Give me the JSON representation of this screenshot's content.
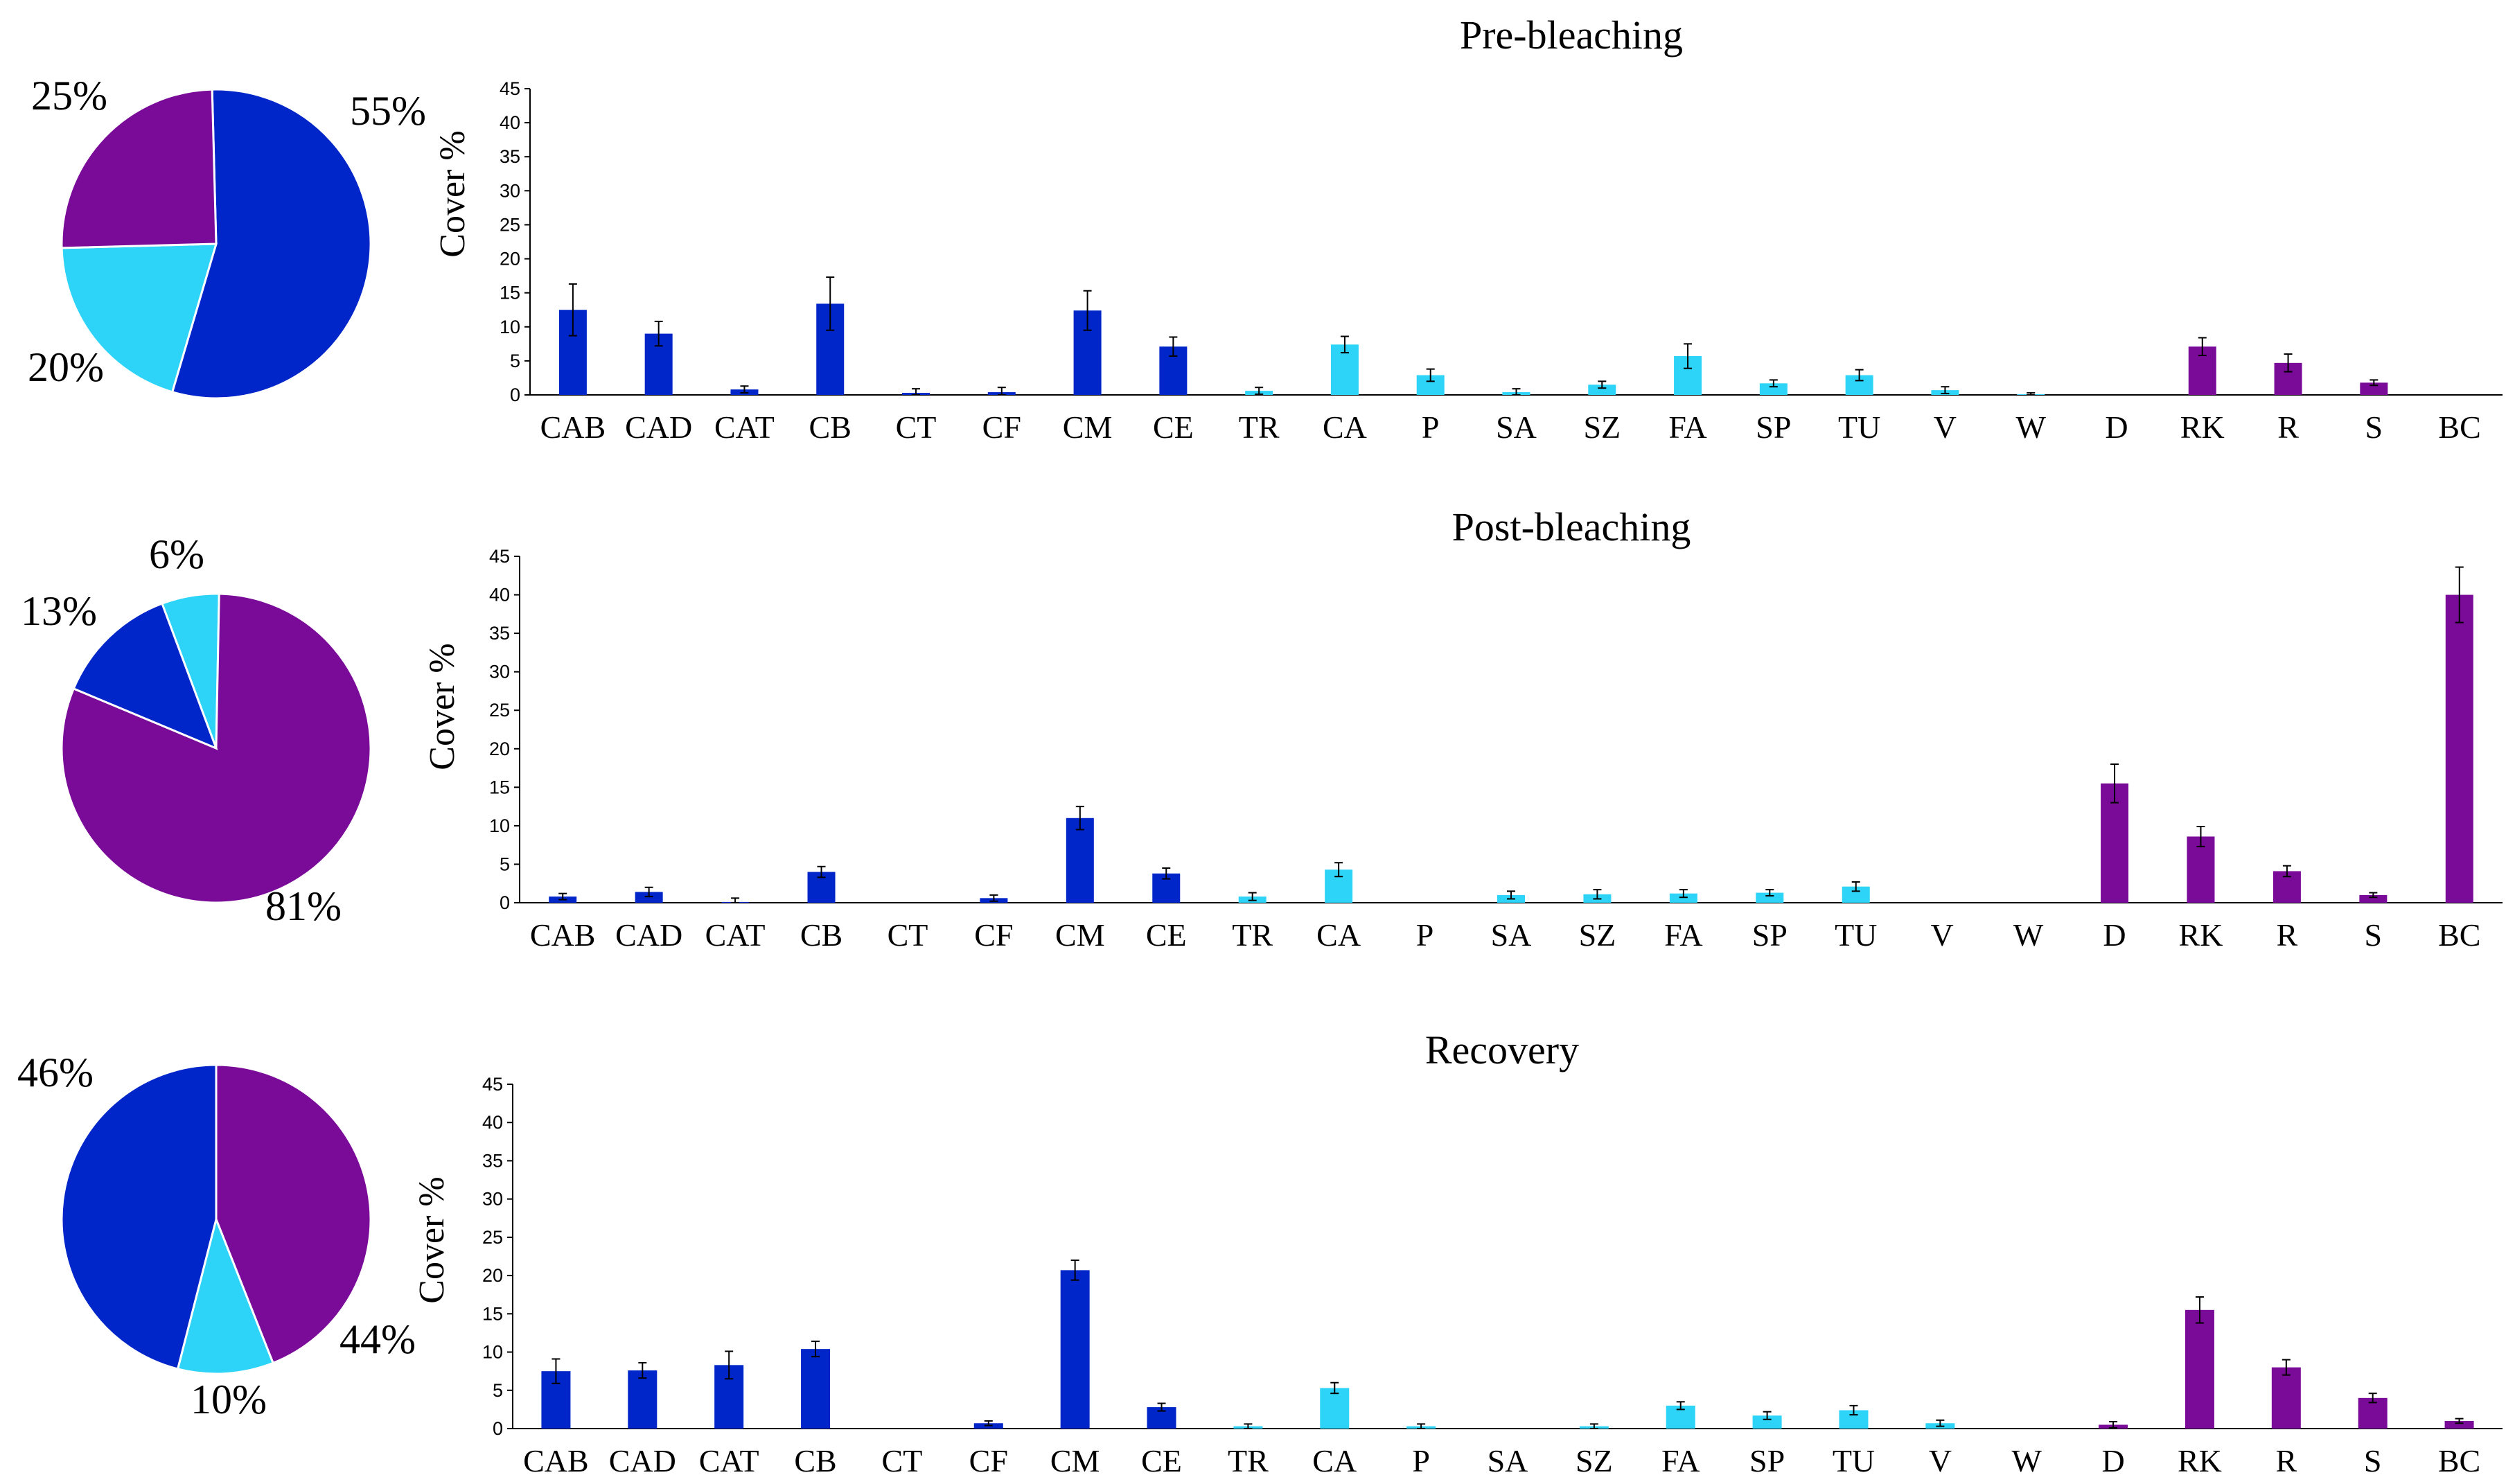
{
  "colors": {
    "coral": "#0026c9",
    "other_biota": "#2ed4f7",
    "substrate": "#7a0b99"
  },
  "chart_data": [
    {
      "type": "pie",
      "name": "pre-pie",
      "slices": [
        {
          "category": "coral",
          "value": 55,
          "label": "55%"
        },
        {
          "category": "other_biota",
          "value": 20,
          "label": "20%"
        },
        {
          "category": "substrate",
          "value": 25,
          "label": "25%"
        }
      ]
    },
    {
      "type": "bar",
      "name": "pre-bar",
      "title": "Pre-bleaching",
      "ylabel": "Cover %",
      "ylim": [
        0,
        45
      ],
      "yticks": [
        0,
        5,
        10,
        15,
        20,
        25,
        30,
        35,
        40,
        45
      ],
      "categories": [
        "CAB",
        "CAD",
        "CAT",
        "CB",
        "CT",
        "CF",
        "CM",
        "CE",
        "TR",
        "CA",
        "P",
        "SA",
        "SZ",
        "FA",
        "SP",
        "TU",
        "V",
        "W",
        "D",
        "RK",
        "R",
        "S",
        "BC"
      ],
      "groups": [
        "coral",
        "coral",
        "coral",
        "coral",
        "coral",
        "coral",
        "coral",
        "coral",
        "other_biota",
        "other_biota",
        "other_biota",
        "other_biota",
        "other_biota",
        "other_biota",
        "other_biota",
        "other_biota",
        "other_biota",
        "other_biota",
        "substrate",
        "substrate",
        "substrate",
        "substrate",
        "substrate"
      ],
      "values": [
        12.5,
        9.0,
        0.8,
        13.4,
        0.3,
        0.4,
        12.4,
        7.1,
        0.6,
        7.4,
        2.9,
        0.4,
        1.5,
        5.7,
        1.7,
        2.9,
        0.7,
        0.1,
        0,
        7.1,
        4.7,
        1.8,
        0
      ],
      "errors": [
        3.8,
        1.8,
        0.5,
        3.9,
        0.6,
        0.7,
        2.9,
        1.4,
        0.5,
        1.2,
        0.9,
        0.5,
        0.5,
        1.8,
        0.5,
        0.8,
        0.5,
        0.2,
        0,
        1.3,
        1.3,
        0.4,
        0
      ]
    },
    {
      "type": "pie",
      "name": "post-pie",
      "slices": [
        {
          "category": "other_biota",
          "value": 6,
          "label": "6%"
        },
        {
          "category": "substrate",
          "value": 81,
          "label": "81%"
        },
        {
          "category": "coral",
          "value": 13,
          "label": "13%"
        }
      ]
    },
    {
      "type": "bar",
      "name": "post-bar",
      "title": "Post-bleaching",
      "ylabel": "Cover %",
      "ylim": [
        0,
        45
      ],
      "yticks": [
        0,
        5,
        10,
        15,
        20,
        25,
        30,
        35,
        40,
        45
      ],
      "categories": [
        "CAB",
        "CAD",
        "CAT",
        "CB",
        "CT",
        "CF",
        "CM",
        "CE",
        "TR",
        "CA",
        "P",
        "SA",
        "SZ",
        "FA",
        "SP",
        "TU",
        "V",
        "W",
        "D",
        "RK",
        "R",
        "S",
        "BC"
      ],
      "groups": [
        "coral",
        "coral",
        "coral",
        "coral",
        "coral",
        "coral",
        "coral",
        "coral",
        "other_biota",
        "other_biota",
        "other_biota",
        "other_biota",
        "other_biota",
        "other_biota",
        "other_biota",
        "other_biota",
        "other_biota",
        "other_biota",
        "substrate",
        "substrate",
        "substrate",
        "substrate",
        "substrate"
      ],
      "values": [
        0.8,
        1.4,
        0.1,
        4.0,
        0,
        0.6,
        11.0,
        3.8,
        0.8,
        4.3,
        0,
        1.0,
        1.1,
        1.2,
        1.3,
        2.1,
        0,
        0,
        15.5,
        8.6,
        4.1,
        1.0,
        40.0
      ],
      "errors": [
        0.4,
        0.6,
        0.5,
        0.7,
        0,
        0.4,
        1.5,
        0.7,
        0.5,
        0.9,
        0,
        0.5,
        0.6,
        0.5,
        0.4,
        0.6,
        0,
        0,
        2.5,
        1.3,
        0.7,
        0.3,
        3.6
      ]
    },
    {
      "type": "pie",
      "name": "recovery-pie",
      "slices": [
        {
          "category": "substrate",
          "value": 44,
          "label": "44%"
        },
        {
          "category": "other_biota",
          "value": 10,
          "label": "10%"
        },
        {
          "category": "coral",
          "value": 46,
          "label": "46%"
        }
      ]
    },
    {
      "type": "bar",
      "name": "recovery-bar",
      "title": "Recovery",
      "ylabel": "Cover %",
      "ylim": [
        0,
        45
      ],
      "yticks": [
        0,
        5,
        10,
        15,
        20,
        25,
        30,
        35,
        40,
        45
      ],
      "categories": [
        "CAB",
        "CAD",
        "CAT",
        "CB",
        "CT",
        "CF",
        "CM",
        "CE",
        "TR",
        "CA",
        "P",
        "SA",
        "SZ",
        "FA",
        "SP",
        "TU",
        "V",
        "W",
        "D",
        "RK",
        "R",
        "S",
        "BC"
      ],
      "groups": [
        "coral",
        "coral",
        "coral",
        "coral",
        "coral",
        "coral",
        "coral",
        "coral",
        "other_biota",
        "other_biota",
        "other_biota",
        "other_biota",
        "other_biota",
        "other_biota",
        "other_biota",
        "other_biota",
        "other_biota",
        "other_biota",
        "substrate",
        "substrate",
        "substrate",
        "substrate",
        "substrate"
      ],
      "values": [
        7.5,
        7.6,
        8.3,
        10.4,
        0,
        0.7,
        20.7,
        2.8,
        0.3,
        5.3,
        0.3,
        0,
        0.3,
        3.0,
        1.7,
        2.4,
        0.7,
        0,
        0.5,
        15.5,
        8.0,
        4.0,
        1.0
      ],
      "errors": [
        1.6,
        1.0,
        1.8,
        1.0,
        0,
        0.3,
        1.3,
        0.5,
        0.3,
        0.7,
        0.3,
        0,
        0.3,
        0.5,
        0.5,
        0.6,
        0.4,
        0,
        0.4,
        1.7,
        1.0,
        0.6,
        0.3
      ]
    }
  ]
}
